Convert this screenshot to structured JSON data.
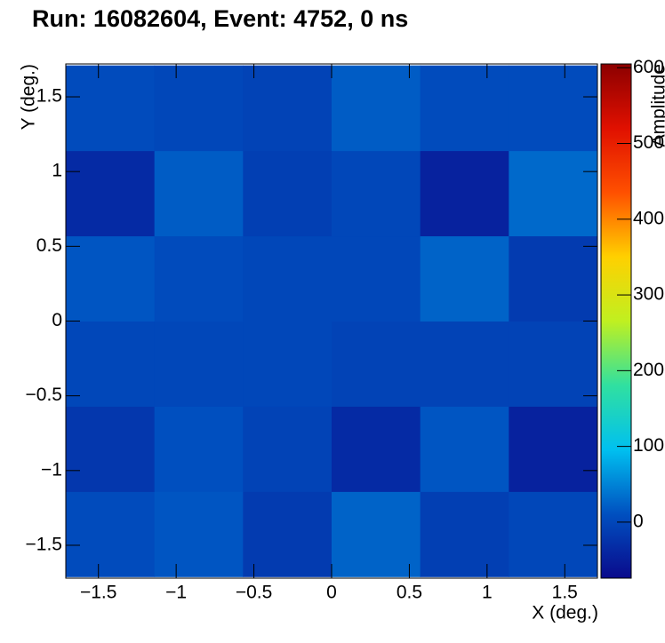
{
  "chart_data": {
    "type": "heatmap",
    "title": "Run: 16082604, Event: 4752, 0 ns",
    "x_label": "X (deg.)",
    "y_label": "Y (deg.)",
    "z_label": "Amplitude",
    "xbins": [
      -1.71,
      -1.14,
      -0.57,
      0,
      0.57,
      1.14,
      1.71
    ],
    "ybins": [
      -1.71,
      -1.14,
      -0.57,
      0,
      0.57,
      1.14,
      1.71
    ],
    "z": [
      [
        5,
        15,
        -15,
        25,
        -10,
        0
      ],
      [
        -20,
        10,
        -5,
        -35,
        15,
        -45
      ],
      [
        0,
        0,
        0,
        -5,
        -5,
        -5
      ],
      [
        15,
        5,
        0,
        0,
        25,
        -15
      ],
      [
        -35,
        20,
        -10,
        0,
        -45,
        30
      ],
      [
        5,
        0,
        -5,
        20,
        5,
        5
      ]
    ],
    "xlim": [
      -1.71,
      1.71
    ],
    "ylim": [
      -1.72,
      1.72
    ],
    "zlim": [
      -74,
      605
    ],
    "xticks": [
      {
        "value": -1.5,
        "label": "−1.5"
      },
      {
        "value": -1,
        "label": "−1"
      },
      {
        "value": -0.5,
        "label": "−0.5"
      },
      0,
      0.5,
      1,
      1.5
    ],
    "yticks": [
      {
        "value": -1.5,
        "label": "−1.5"
      },
      {
        "value": -1,
        "label": "−1"
      },
      {
        "value": -0.5,
        "label": "−0.5"
      },
      0,
      0.5,
      1,
      1.5
    ],
    "zticks": [
      0,
      100,
      200,
      300,
      400,
      500,
      600
    ],
    "colorscale": [
      "#0a0a8c",
      "#0050c0",
      "#00c0f0",
      "#30e0a0",
      "#c0f020",
      "#ffd000",
      "#ff5000",
      "#e01000",
      "#8c0000"
    ]
  }
}
